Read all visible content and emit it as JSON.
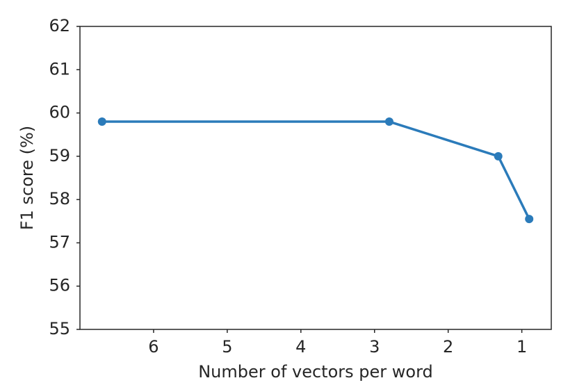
{
  "chart_data": {
    "type": "line",
    "x_label": "Number of vectors per word",
    "y_label": "F1 score (%)",
    "x": [
      6.7,
      2.8,
      1.32,
      0.9
    ],
    "series": [
      {
        "name": "F1",
        "color": "#2b7bba",
        "values": [
          59.8,
          59.8,
          59.0,
          57.55
        ]
      }
    ],
    "xlim": [
      7,
      0.6
    ],
    "xticks": [
      6,
      5,
      4,
      3,
      2,
      1
    ],
    "ylim": [
      55,
      62
    ],
    "yticks": [
      55,
      56,
      57,
      58,
      59,
      60,
      61,
      62
    ],
    "grid": false
  }
}
